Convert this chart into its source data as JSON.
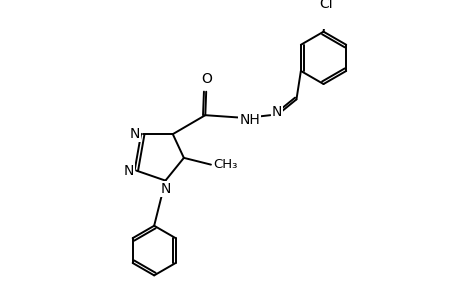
{
  "background_color": "#ffffff",
  "line_color": "#000000",
  "line_width": 1.4,
  "font_size": 10,
  "figsize": [
    4.6,
    3.0
  ],
  "dpi": 100,
  "xlim": [
    0,
    9.2
  ],
  "ylim": [
    0,
    6.0
  ]
}
